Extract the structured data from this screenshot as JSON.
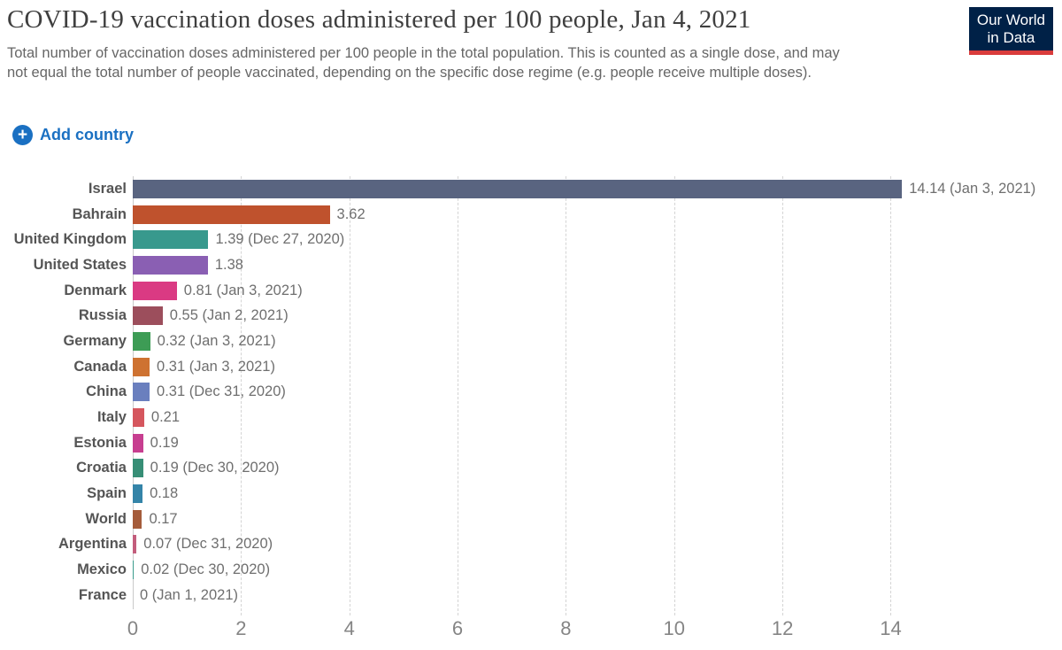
{
  "header": {
    "title": "COVID-19 vaccination doses administered per 100 people, Jan 4, 2021",
    "subtitle": "Total number of vaccination doses administered per 100 people in the total population. This is counted as a single dose, and may not equal the total number of people vaccinated, depending on the specific dose regime (e.g. people receive multiple doses).",
    "logo": {
      "line1": "Our World",
      "line2": "in Data",
      "bg_color": "#002147",
      "accent_color": "#d93c3c"
    }
  },
  "controls": {
    "add_country_label": "Add country",
    "accent_color": "#1a70c2",
    "plus_icon_glyph": "+"
  },
  "chart_data": {
    "type": "bar",
    "orientation": "horizontal",
    "title": "COVID-19 vaccination doses administered per 100 people, Jan 4, 2021",
    "xlabel": "",
    "ylabel": "",
    "xlim": [
      0,
      17
    ],
    "x_ticks": [
      0,
      2,
      4,
      6,
      8,
      10,
      12,
      14
    ],
    "grid": "vertical-dashed",
    "legend": "none",
    "categories": [
      "Israel",
      "Bahrain",
      "United Kingdom",
      "United States",
      "Denmark",
      "Russia",
      "Germany",
      "Canada",
      "China",
      "Italy",
      "Estonia",
      "Croatia",
      "Spain",
      "World",
      "Argentina",
      "Mexico",
      "France"
    ],
    "values": [
      14.14,
      3.62,
      1.39,
      1.38,
      0.81,
      0.55,
      0.32,
      0.31,
      0.31,
      0.21,
      0.19,
      0.19,
      0.18,
      0.17,
      0.07,
      0.02,
      0
    ],
    "value_labels": [
      "14.14 (Jan 3, 2021)",
      "3.62",
      "1.39 (Dec 27, 2020)",
      "1.38",
      "0.81 (Jan 3, 2021)",
      "0.55 (Jan 2, 2021)",
      "0.32 (Jan 3, 2021)",
      "0.31 (Jan 3, 2021)",
      "0.31 (Dec 31, 2020)",
      "0.21",
      "0.19",
      "0.19 (Dec 30, 2020)",
      "0.18",
      "0.17",
      "0.07 (Dec 31, 2020)",
      "0.02 (Dec 30, 2020)",
      "0 (Jan 1, 2021)"
    ],
    "bar_colors": [
      "#596480",
      "#BF522D",
      "#38998D",
      "#8A5FB3",
      "#DA3A83",
      "#9C4E5C",
      "#3D9C55",
      "#CE7231",
      "#6A7FBE",
      "#D5565E",
      "#C73E90",
      "#378E76",
      "#3484A8",
      "#A55C3B",
      "#C35D7C",
      "#3A9C8C",
      "#888888"
    ],
    "grid_color": "#d4d4d4",
    "axis_line_color": "#c9c9c9",
    "label_color": "#555555",
    "value_label_color": "#6f6f6f",
    "tick_label_color": "#858585"
  }
}
